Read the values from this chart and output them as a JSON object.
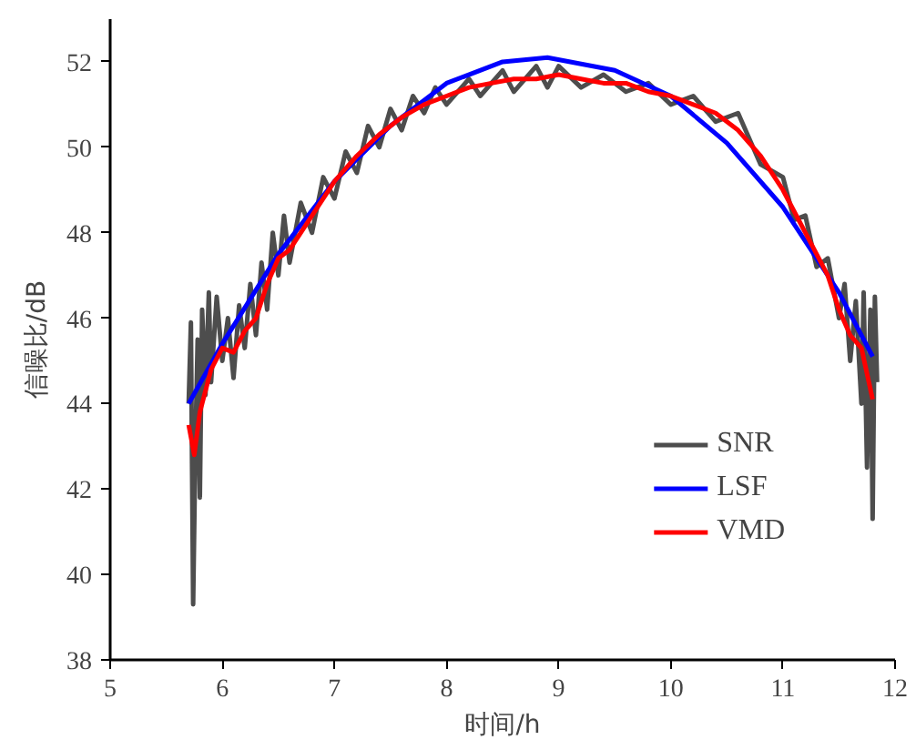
{
  "chart_data": {
    "type": "line",
    "xlabel": "时间/h",
    "ylabel": "信噪比/dB",
    "xlim": [
      5,
      12
    ],
    "ylim": [
      38,
      53
    ],
    "xticks": [
      5,
      6,
      7,
      8,
      9,
      10,
      11,
      12
    ],
    "yticks": [
      38,
      40,
      42,
      44,
      46,
      48,
      50,
      52
    ],
    "grid": false,
    "legend": "bottom right",
    "line_style": "solid",
    "marker": "none",
    "series": [
      {
        "name": "SNR",
        "color": "#4d4d4d",
        "x": [
          5.7,
          5.72,
          5.74,
          5.76,
          5.78,
          5.8,
          5.82,
          5.85,
          5.88,
          5.9,
          5.95,
          6.0,
          6.05,
          6.1,
          6.15,
          6.2,
          6.25,
          6.3,
          6.35,
          6.4,
          6.45,
          6.5,
          6.55,
          6.6,
          6.7,
          6.8,
          6.9,
          7.0,
          7.1,
          7.2,
          7.3,
          7.4,
          7.5,
          7.6,
          7.7,
          7.8,
          7.9,
          8.0,
          8.2,
          8.3,
          8.5,
          8.6,
          8.8,
          8.9,
          9.0,
          9.2,
          9.4,
          9.6,
          9.8,
          10.0,
          10.2,
          10.4,
          10.6,
          10.8,
          11.0,
          11.1,
          11.2,
          11.3,
          11.4,
          11.5,
          11.55,
          11.6,
          11.65,
          11.7,
          11.72,
          11.75,
          11.78,
          11.8,
          11.82,
          11.84
        ],
        "values": [
          44.0,
          45.9,
          39.3,
          43.0,
          45.5,
          41.8,
          46.2,
          44.2,
          46.6,
          44.5,
          46.5,
          45.0,
          46.0,
          44.6,
          46.3,
          45.3,
          46.8,
          45.6,
          47.3,
          46.2,
          48.0,
          47.0,
          48.4,
          47.3,
          48.7,
          48.0,
          49.3,
          48.8,
          49.9,
          49.4,
          50.5,
          50.0,
          50.9,
          50.4,
          51.2,
          50.8,
          51.4,
          51.0,
          51.6,
          51.2,
          51.8,
          51.3,
          51.9,
          51.4,
          51.9,
          51.4,
          51.7,
          51.3,
          51.5,
          51.0,
          51.2,
          50.6,
          50.8,
          49.6,
          49.3,
          48.3,
          48.4,
          47.2,
          47.4,
          46.0,
          46.8,
          45.0,
          46.4,
          44.0,
          46.6,
          42.5,
          46.2,
          41.3,
          46.5,
          44.5
        ]
      },
      {
        "name": "LSF",
        "color": "#0000ff",
        "x": [
          5.7,
          6.0,
          6.5,
          7.0,
          7.5,
          8.0,
          8.5,
          8.9,
          9.5,
          10.0,
          10.5,
          11.0,
          11.5,
          11.8
        ],
        "values": [
          44.0,
          45.4,
          47.5,
          49.2,
          50.5,
          51.5,
          52.0,
          52.1,
          51.8,
          51.2,
          50.1,
          48.6,
          46.6,
          45.1
        ]
      },
      {
        "name": "VMD",
        "color": "#ff0000",
        "x": [
          5.7,
          5.75,
          5.8,
          5.9,
          6.0,
          6.1,
          6.2,
          6.3,
          6.4,
          6.5,
          6.6,
          6.8,
          7.0,
          7.2,
          7.4,
          7.6,
          7.8,
          8.0,
          8.2,
          8.4,
          8.6,
          8.8,
          9.0,
          9.2,
          9.4,
          9.6,
          9.8,
          10.0,
          10.2,
          10.4,
          10.6,
          10.8,
          11.0,
          11.2,
          11.4,
          11.5,
          11.6,
          11.7,
          11.8
        ],
        "values": [
          43.5,
          42.8,
          43.8,
          44.8,
          45.3,
          45.2,
          45.7,
          46.0,
          46.8,
          47.4,
          47.6,
          48.4,
          49.2,
          49.8,
          50.3,
          50.7,
          51.0,
          51.2,
          51.4,
          51.5,
          51.6,
          51.6,
          51.7,
          51.6,
          51.5,
          51.5,
          51.3,
          51.2,
          51.0,
          50.8,
          50.4,
          49.8,
          49.0,
          48.0,
          47.0,
          46.2,
          45.6,
          45.3,
          44.1
        ]
      }
    ]
  }
}
